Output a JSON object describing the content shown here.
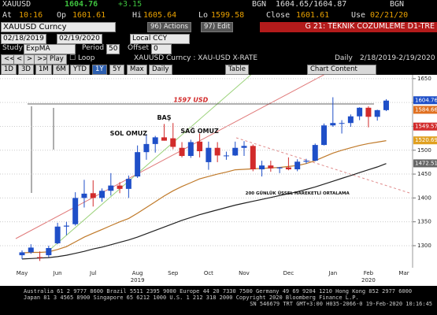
{
  "header": {
    "ticker": "XAUUSD",
    "last": "1604.76",
    "change": "+3.15",
    "bid_src": "BGN",
    "bid_ask": "1604.65/1604.87",
    "ask_src": "BGN",
    "at_label": "At",
    "at": "10:16",
    "op_label": "Op",
    "op": "1601.61",
    "hi_label": "Hi",
    "hi": "1605.64",
    "lo_label": "Lo",
    "lo": "1599.58",
    "close_label": "Close",
    "close": "1601.61",
    "use_label": "Use",
    "use": "02/21/20",
    "security": "XAUUSD  Curncy",
    "actions": "96) Actions",
    "edit": "97) Edit",
    "page_title": "G 21: TEKNIK COZUMLEME D1-TRE",
    "date_from": "02/18/2019",
    "date_to": "02/19/2020",
    "ccy": "Local CCY",
    "study_label": "Study",
    "study": "ExpMA",
    "period_label": "Period",
    "period": "50",
    "offset_label": "Offset",
    "offset": "0",
    "play": "Play",
    "loop": "Loop",
    "description": "XAUUSD  Curncy : XAU-USD X-RATE",
    "freq": "Daily",
    "range": "2/18/2019-2/19/2020",
    "tabs": [
      "1D",
      "3D",
      "1M",
      "6M",
      "YTD",
      "1Y",
      "5Y",
      "Max",
      "Daily"
    ],
    "table": "Table",
    "chart_content": "Chart Content"
  },
  "chart_data": {
    "type": "candlestick",
    "up_color": "#1f4fc8",
    "down_color": "#d22b2b",
    "categories": [
      "May",
      null,
      null,
      null,
      "Jun",
      null,
      null,
      null,
      "Jul",
      null,
      null,
      null,
      null,
      "Aug",
      null,
      null,
      null,
      "Sep",
      null,
      null,
      null,
      "Oct",
      null,
      null,
      null,
      "Nov",
      null,
      null,
      null,
      null,
      "Dec",
      null,
      null,
      null,
      null,
      "Jan",
      null,
      null,
      null,
      "Feb",
      null,
      null,
      null,
      "Mar"
    ],
    "year_labels": [
      {
        "index": 13,
        "label": "2019"
      },
      {
        "index": 39,
        "label": "2020"
      }
    ],
    "open": [
      1280,
      1286,
      1276,
      1280,
      1305,
      1340,
      1345,
      1400,
      1410,
      1400,
      1415,
      1426,
      1419,
      1445,
      1496,
      1513,
      1527,
      1525,
      1505,
      1488,
      1518,
      1475,
      1505,
      1489,
      1489,
      1505,
      1509,
      1460,
      1468,
      1462,
      1464,
      1460,
      1476,
      1478,
      1511,
      1552,
      1557,
      1557,
      1571,
      1589,
      1570,
      1584,
      null,
      null
    ],
    "high": [
      1290,
      1303,
      1288,
      1300,
      1348,
      1350,
      1412,
      1438,
      1437,
      1420,
      1452,
      1433,
      1447,
      1510,
      1534,
      1530,
      1555,
      1557,
      1517,
      1522,
      1535,
      1518,
      1517,
      1497,
      1518,
      1519,
      1512,
      1478,
      1478,
      1465,
      1485,
      1481,
      1482,
      1514,
      1556,
      1611,
      1563,
      1575,
      1590,
      1592,
      1585,
      1607,
      null,
      null
    ],
    "low": [
      1272,
      1283,
      1268,
      1276,
      1303,
      1322,
      1342,
      1380,
      1382,
      1392,
      1405,
      1410,
      1400,
      1442,
      1480,
      1495,
      1520,
      1502,
      1485,
      1484,
      1485,
      1459,
      1475,
      1480,
      1488,
      1488,
      1456,
      1445,
      1455,
      1452,
      1458,
      1456,
      1472,
      1477,
      1510,
      1549,
      1535,
      1549,
      1563,
      1548,
      1562,
      1582,
      null,
      null
    ],
    "close": [
      1286,
      1296,
      1275,
      1295,
      1340,
      1342,
      1400,
      1409,
      1400,
      1415,
      1426,
      1419,
      1440,
      1496,
      1513,
      1527,
      1520,
      1507,
      1488,
      1517,
      1498,
      1505,
      1489,
      1489,
      1505,
      1509,
      1460,
      1468,
      1462,
      1464,
      1460,
      1476,
      1478,
      1511,
      1552,
      1557,
      1557,
      1571,
      1589,
      1570,
      1584,
      1604,
      null,
      null
    ],
    "overlays": [
      {
        "color": "#c07a2a",
        "values": [
          1285,
          1286,
          1286,
          1287,
          1292,
          1298,
          1308,
          1318,
          1326,
          1334,
          1342,
          1350,
          1357,
          1368,
          1380,
          1392,
          1404,
          1415,
          1424,
          1432,
          1440,
          1445,
          1450,
          1454,
          1459,
          1460,
          1461,
          1462,
          1463,
          1464,
          1466,
          1468,
          1472,
          1478,
          1486,
          1494,
          1500,
          1505,
          1510,
          1514,
          1517,
          1520,
          null,
          null
        ]
      },
      {
        "color": "#222222",
        "values": [
          1272,
          1273,
          1274,
          1275,
          1277,
          1280,
          1284,
          1288,
          1293,
          1297,
          1302,
          1307,
          1312,
          1318,
          1325,
          1332,
          1339,
          1346,
          1353,
          1359,
          1365,
          1370,
          1375,
          1380,
          1385,
          1389,
          1393,
          1397,
          1401,
          1405,
          1409,
          1413,
          1418,
          1423,
          1429,
          1435,
          1441,
          1447,
          1453,
          1459,
          1465,
          1472,
          null,
          null
        ]
      }
    ],
    "ylim": [
      1262,
      1658
    ],
    "yticks": [
      1300,
      1350,
      1400,
      1450,
      1500,
      1550,
      1600,
      1650
    ],
    "grid": true,
    "hline": {
      "value": 1597,
      "color": "#333333"
    },
    "price_labels": [
      {
        "value": 1604.76,
        "color": "#1f4fc8"
      },
      {
        "value": 1584.66,
        "color": "#e07020"
      },
      {
        "value": 1549.57,
        "color": "#d22b2b"
      },
      {
        "value": 1520.69,
        "color": "#e0a020"
      },
      {
        "value": 1472.51,
        "color": "#666666"
      }
    ],
    "annotations": [
      {
        "text": "1597 USD",
        "index": 19,
        "y": 1605,
        "color": "#d22b2b"
      },
      {
        "text": "BAŞ",
        "index": 16,
        "y": 1568,
        "color": "#111111"
      },
      {
        "text": "SOL OMUZ",
        "index": 12,
        "y": 1535,
        "color": "#111111"
      },
      {
        "text": "SAĞ OMUZ",
        "index": 20,
        "y": 1540,
        "color": "#111111"
      },
      {
        "text": "200 GÜNLÜK ÜSSEL HAREKETLİ ORTALAMA",
        "index": 31,
        "y": 1410,
        "color": "#111111"
      }
    ]
  },
  "footer": [
    "Australia 61 2 9777 8600 Brazil 5511 2395 9000 Europe 44 20 7330 7500 Germany 49 69 9204 1210 Hong Kong 852 2977 6000",
    "Japan 81 3 4565 8900       Singapore 65 6212 1000       U.S. 1 212 318 2000       Copyright 2020 Bloomberg Finance L.P.",
    "SN 546679 TRT  GMT+3:00 H035-2066-0 19-Feb-2020 10:16:45"
  ]
}
